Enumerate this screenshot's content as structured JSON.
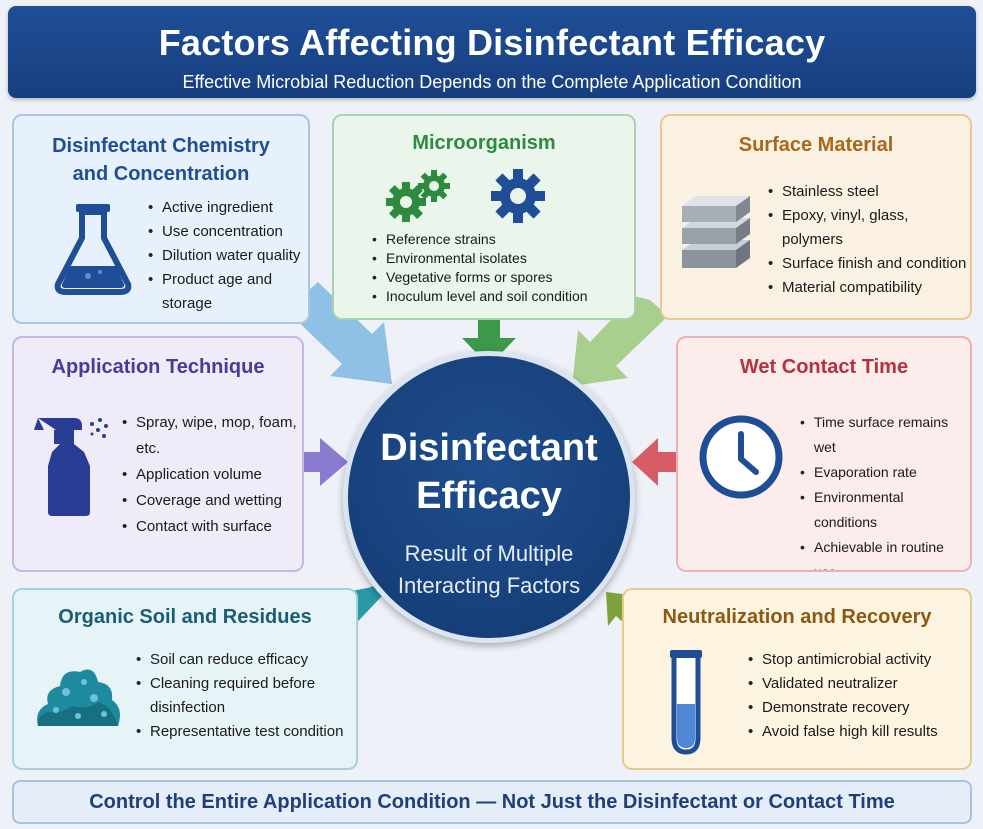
{
  "header": {
    "title": "Factors Affecting Disinfectant Efficacy",
    "subtitle": "Effective Microbial Reduction Depends on the Complete Application Condition"
  },
  "center": {
    "title_line1": "Disinfectant",
    "title_line2": "Efficacy",
    "sub_line1": "Result of Multiple",
    "sub_line2": "Interacting Factors"
  },
  "factors": {
    "chemistry": {
      "title_line1": "Disinfectant Chemistry",
      "title_line2": "and Concentration",
      "items": [
        "Active ingredient",
        "Use concentration",
        "Dilution water quality",
        "Product age and storage"
      ],
      "icon": "flask-icon"
    },
    "microorganism": {
      "title": "Microorganism",
      "items": [
        "Reference strains",
        "Environmental isolates",
        "Vegetative forms or spores",
        "Inoculum level and soil condition"
      ],
      "icon": "gear-icon"
    },
    "surface": {
      "title": "Surface Material",
      "items": [
        "Stainless steel",
        "Epoxy, vinyl, glass, polymers",
        "Surface finish and condition",
        "Material compatibility"
      ],
      "icon": "material-stack-icon"
    },
    "application": {
      "title": "Application Technique",
      "items": [
        "Spray, wipe, mop, foam, etc.",
        "Application volume",
        "Coverage and wetting",
        "Contact with surface"
      ],
      "icon": "spray-bottle-icon"
    },
    "wet_contact": {
      "title": "Wet Contact Time",
      "items": [
        "Time surface remains wet",
        "Evaporation rate",
        "Environmental conditions",
        "Achievable in routine use"
      ],
      "icon": "clock-icon"
    },
    "organic": {
      "title": "Organic Soil and Residues",
      "items": [
        "Soil can reduce efficacy",
        "Cleaning required before disinfection",
        "Representative test condition"
      ],
      "icon": "soil-pile-icon"
    },
    "neutralization": {
      "title": "Neutralization and Recovery",
      "items": [
        "Stop antimicrobial activity",
        "Validated neutralizer",
        "Demonstrate recovery",
        "Avoid false high kill results"
      ],
      "icon": "test-tube-icon"
    }
  },
  "footer": {
    "text": "Control the Entire Application Condition — Not Just the Disinfectant or Contact Time"
  },
  "colors": {
    "header_blue": "#1f4e96",
    "center_navy": "#173f80",
    "chemistry": "#1f4e96",
    "microorganism": "#2d8a3e",
    "surface": "#a6681d",
    "application": "#4a3a9a",
    "wet_contact": "#b5323c",
    "organic": "#1a5e73",
    "neutralization": "#8a5a10"
  }
}
